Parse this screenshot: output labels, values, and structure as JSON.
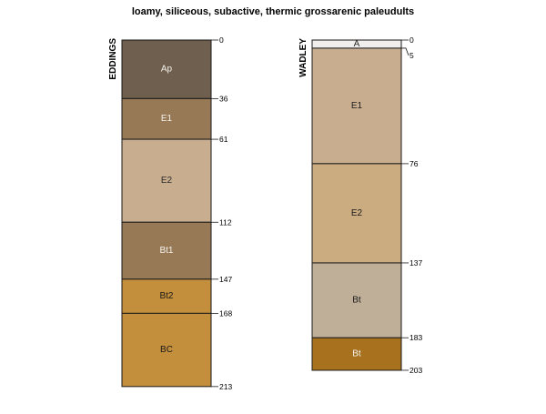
{
  "title": "loamy, siliceous, subactive, thermic grossarenic paleudults",
  "max_depth": 213,
  "profiles": [
    {
      "name": "EDDINGS",
      "horizons": [
        {
          "label": "Ap",
          "top": 0,
          "bottom": 36,
          "color": "#6f5f4e",
          "text_color": "#f4f1ec"
        },
        {
          "label": "E1",
          "top": 36,
          "bottom": 61,
          "color": "#977a55",
          "text_color": "#f4f1ec"
        },
        {
          "label": "E2",
          "top": 61,
          "bottom": 112,
          "color": "#c8ae8f",
          "text_color": "#2a2a2a"
        },
        {
          "label": "Bt1",
          "top": 112,
          "bottom": 147,
          "color": "#977a55",
          "text_color": "#f4f1ec"
        },
        {
          "label": "Bt2",
          "top": 147,
          "bottom": 168,
          "color": "#c48f3c",
          "text_color": "#1a1a1a"
        },
        {
          "label": "BC",
          "top": 168,
          "bottom": 213,
          "color": "#c48f3c",
          "text_color": "#1a1a1a"
        }
      ],
      "depth_labels": [
        "0",
        "36",
        "61",
        "112",
        "147",
        "168",
        "213"
      ]
    },
    {
      "name": "WADLEY",
      "horizons": [
        {
          "label": "A",
          "top": 0,
          "bottom": 5,
          "color": "#f0efed",
          "text_color": "#2a2a2a"
        },
        {
          "label": "E1",
          "top": 5,
          "bottom": 76,
          "color": "#c8ae8f",
          "text_color": "#1a1a1a"
        },
        {
          "label": "E2",
          "top": 76,
          "bottom": 137,
          "color": "#cbab80",
          "text_color": "#1a1a1a"
        },
        {
          "label": "Bt",
          "top": 137,
          "bottom": 183,
          "color": "#bfaf98",
          "text_color": "#1a1a1a"
        },
        {
          "label": "Bt",
          "top": 183,
          "bottom": 203,
          "color": "#a8711e",
          "text_color": "#f4f1ec"
        }
      ],
      "depth_labels": [
        "0",
        "5",
        "76",
        "137",
        "183",
        "203"
      ]
    }
  ]
}
